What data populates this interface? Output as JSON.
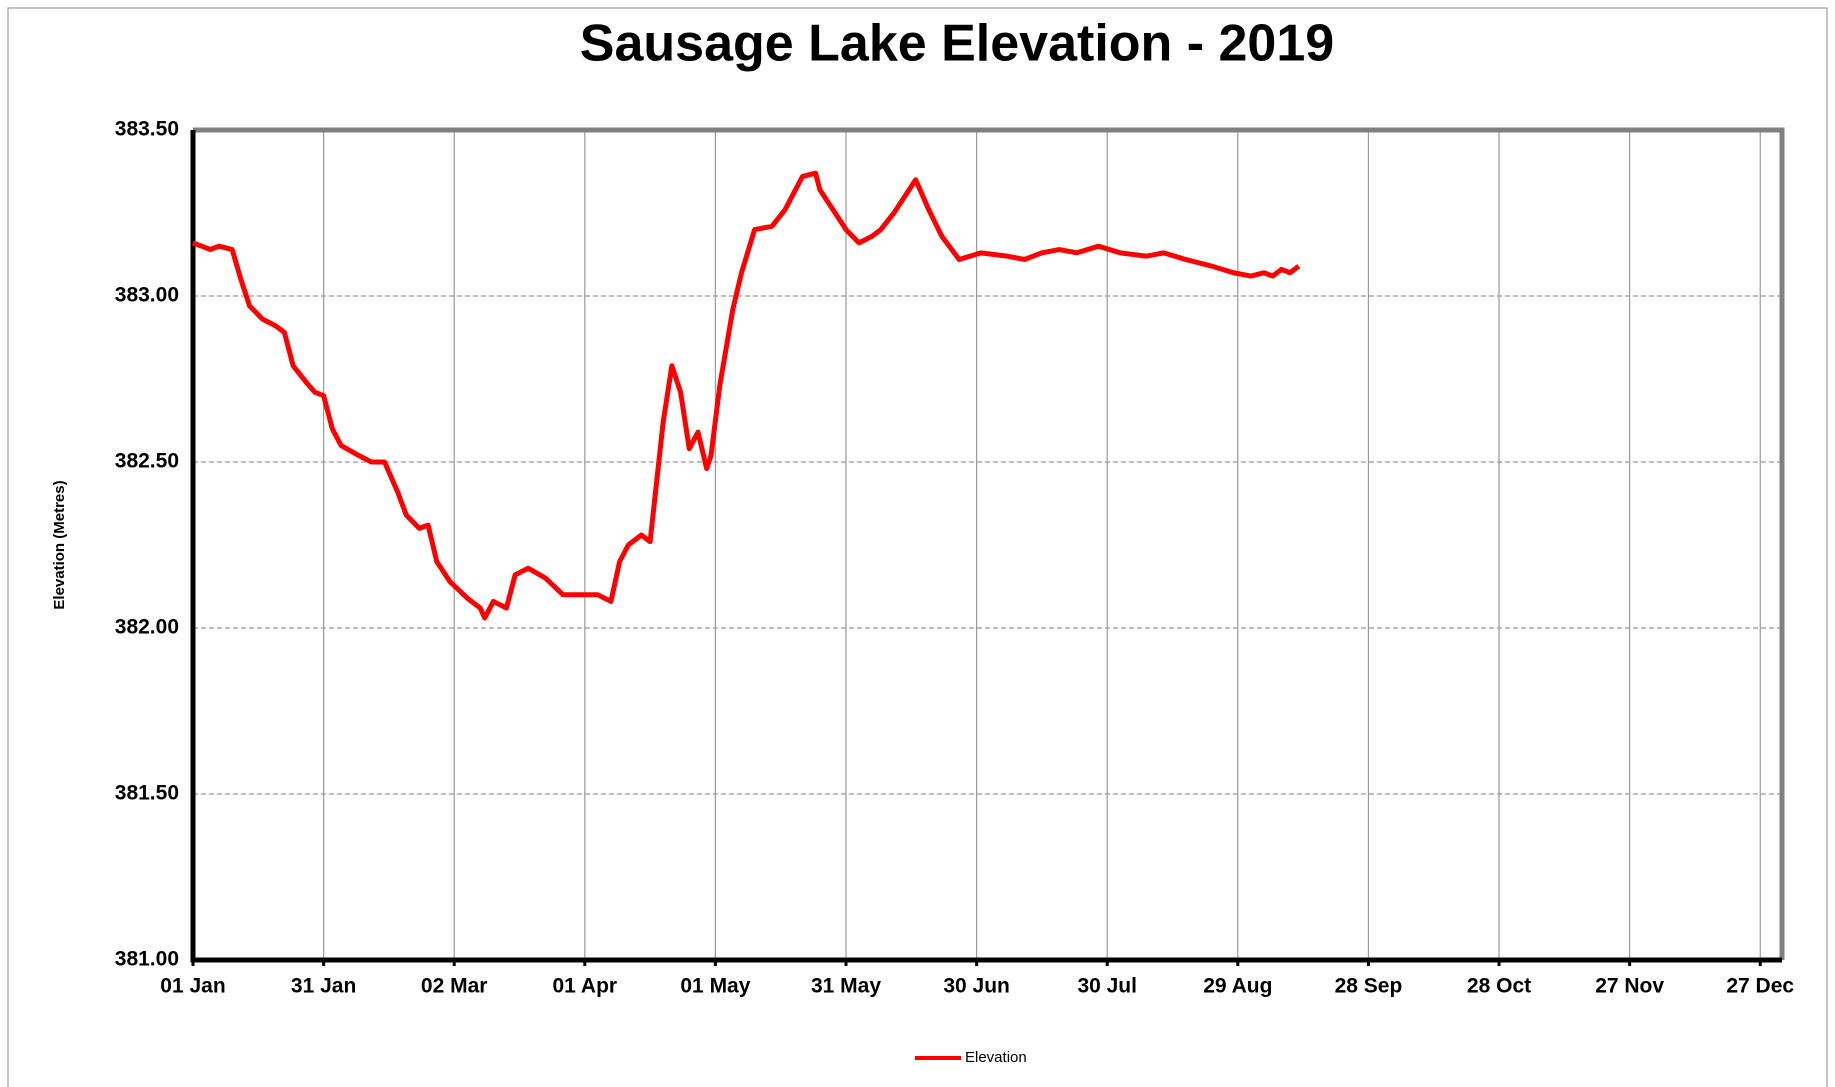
{
  "chart_data": {
    "type": "line",
    "title": "Sausage Lake Elevation - 2019",
    "y_label": "Elevation (Metres)",
    "x": [
      0,
      2,
      4,
      6,
      9,
      11,
      13,
      16,
      19,
      21,
      23,
      26,
      28,
      30,
      32,
      34,
      38,
      41,
      44,
      47,
      49,
      52,
      54,
      56,
      59,
      63,
      66,
      67,
      69,
      72,
      74,
      77,
      81,
      85,
      93,
      96,
      98,
      100,
      103,
      105,
      107,
      108,
      110,
      112,
      114,
      116,
      118,
      119,
      121,
      124,
      126,
      129,
      133,
      136,
      138,
      140,
      143,
      144,
      147,
      150,
      153,
      156,
      158,
      161,
      164,
      166,
      169,
      172,
      176,
      181,
      187,
      191,
      195,
      199,
      203,
      208,
      213,
      219,
      223,
      228,
      234,
      239,
      243,
      246,
      248,
      250,
      252,
      254
    ],
    "series": [
      {
        "name": "Elevation",
        "color": "#ff0000",
        "values": [
          383.16,
          383.15,
          383.14,
          383.15,
          383.14,
          383.05,
          382.97,
          382.93,
          382.91,
          382.89,
          382.79,
          382.74,
          382.71,
          382.7,
          382.6,
          382.55,
          382.52,
          382.5,
          382.5,
          382.41,
          382.34,
          382.3,
          382.31,
          382.2,
          382.14,
          382.09,
          382.06,
          382.03,
          382.08,
          382.06,
          382.16,
          382.18,
          382.15,
          382.1,
          382.1,
          382.08,
          382.2,
          382.25,
          382.28,
          382.26,
          382.5,
          382.62,
          382.79,
          382.71,
          382.54,
          382.59,
          382.48,
          382.52,
          382.73,
          382.96,
          383.07,
          383.2,
          383.21,
          383.26,
          383.31,
          383.36,
          383.37,
          383.32,
          383.26,
          383.2,
          383.16,
          383.18,
          383.2,
          383.25,
          383.31,
          383.35,
          383.26,
          383.18,
          383.11,
          383.13,
          383.12,
          383.11,
          383.13,
          383.14,
          383.13,
          383.15,
          383.13,
          383.12,
          383.13,
          383.11,
          383.09,
          383.07,
          383.06,
          383.07,
          383.06,
          383.08,
          383.07,
          383.09
        ]
      }
    ],
    "xlim": [
      0,
      365
    ],
    "xticks": [
      {
        "value": 0,
        "label": "01 Jan"
      },
      {
        "value": 30,
        "label": "31 Jan"
      },
      {
        "value": 60,
        "label": "02 Mar"
      },
      {
        "value": 90,
        "label": "01 Apr"
      },
      {
        "value": 120,
        "label": "01 May"
      },
      {
        "value": 150,
        "label": "31 May"
      },
      {
        "value": 180,
        "label": "30 Jun"
      },
      {
        "value": 210,
        "label": "30 Jul"
      },
      {
        "value": 240,
        "label": "29 Aug"
      },
      {
        "value": 270,
        "label": "28 Sep"
      },
      {
        "value": 300,
        "label": "28 Oct"
      },
      {
        "value": 330,
        "label": "27 Nov"
      },
      {
        "value": 360,
        "label": "27 Dec"
      }
    ],
    "ylim": [
      381,
      383.5
    ],
    "yticks": [
      {
        "value": 381,
        "label": "381.00"
      },
      {
        "value": 381.5,
        "label": "381.50"
      },
      {
        "value": 382,
        "label": "382.00"
      },
      {
        "value": 382.5,
        "label": "382.50"
      },
      {
        "value": 383,
        "label": "383.00"
      },
      {
        "value": 383.5,
        "label": "383.50"
      }
    ],
    "grid": true,
    "legend": "bottom"
  }
}
